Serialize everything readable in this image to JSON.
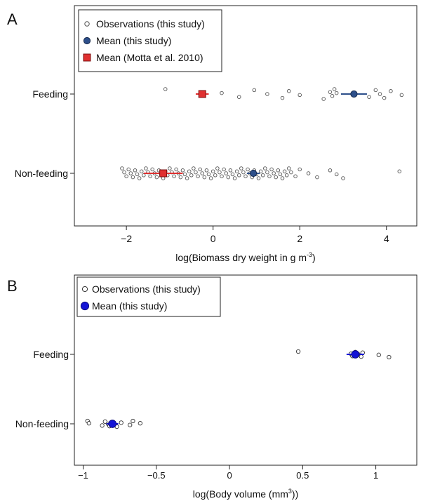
{
  "chart_data": [
    {
      "panel_label": "A",
      "type": "scatter",
      "title": "",
      "xlabel": "log(Biomass dry weight in g m",
      "xlabel_superscript": "-3",
      "xlabel_suffix": ")",
      "xlim": [
        -3.2,
        4.7
      ],
      "xticks": [
        -2,
        0,
        2,
        4
      ],
      "xtick_labels": [
        "−2",
        "0",
        "2",
        "4"
      ],
      "categories": [
        "Feeding",
        "Non-feeding"
      ],
      "legend": {
        "placement": "top-left",
        "entries": [
          "Observations (this study)",
          "Mean (this study)",
          "Mean (Motta et al. 2010)"
        ]
      },
      "colors": {
        "observation_edge": "#555555",
        "mean_this_study": "#2d4f8a",
        "mean_motta": "#e03030"
      },
      "series": [
        {
          "name": "Observations (this study)",
          "points": {
            "Feeding": [
              -1.1,
              0.2,
              0.6,
              0.95,
              1.25,
              1.6,
              1.75,
              2.0,
              2.55,
              2.7,
              2.75,
              2.8,
              2.85,
              3.6,
              3.75,
              3.85,
              3.95,
              4.1,
              4.35
            ],
            "Non-feeding": [
              -2.1,
              -2.05,
              -2.0,
              -1.95,
              -1.9,
              -1.85,
              -1.8,
              -1.75,
              -1.7,
              -1.65,
              -1.6,
              -1.55,
              -1.5,
              -1.45,
              -1.4,
              -1.35,
              -1.3,
              -1.25,
              -1.2,
              -1.15,
              -1.1,
              -1.05,
              -1.0,
              -0.95,
              -0.9,
              -0.85,
              -0.8,
              -0.75,
              -0.7,
              -0.65,
              -0.6,
              -0.55,
              -0.5,
              -0.45,
              -0.4,
              -0.35,
              -0.3,
              -0.25,
              -0.2,
              -0.15,
              -0.1,
              -0.05,
              0.0,
              0.05,
              0.1,
              0.15,
              0.2,
              0.25,
              0.3,
              0.35,
              0.4,
              0.45,
              0.5,
              0.55,
              0.6,
              0.65,
              0.7,
              0.75,
              0.8,
              0.85,
              0.9,
              0.95,
              1.0,
              1.05,
              1.1,
              1.15,
              1.2,
              1.25,
              1.3,
              1.35,
              1.4,
              1.45,
              1.5,
              1.55,
              1.6,
              1.65,
              1.7,
              1.75,
              1.8,
              1.9,
              2.0,
              2.2,
              2.4,
              2.7,
              2.85,
              3.0,
              4.3
            ]
          }
        },
        {
          "name": "Mean (this study)",
          "means": [
            {
              "category": "Feeding",
              "x": 3.25,
              "ci": [
                2.95,
                3.55
              ]
            },
            {
              "category": "Non-feeding",
              "x": 0.93,
              "ci": [
                0.78,
                1.08
              ]
            }
          ]
        },
        {
          "name": "Mean (Motta et al. 2010)",
          "means": [
            {
              "category": "Feeding",
              "x": -0.25,
              "ci": [
                -0.4,
                -0.1
              ]
            },
            {
              "category": "Non-feeding",
              "x": -1.15,
              "ci": [
                -1.6,
                -0.7
              ]
            }
          ]
        }
      ]
    },
    {
      "panel_label": "B",
      "type": "scatter",
      "title": "",
      "xlabel": "log(Body volume (mm",
      "xlabel_superscript": "3",
      "xlabel_suffix": "))",
      "xlim": [
        -1.06,
        1.28
      ],
      "xticks": [
        -1,
        -0.5,
        0,
        0.5,
        1
      ],
      "xtick_labels": [
        "−1",
        "−0.5",
        "0",
        "0.5",
        "1"
      ],
      "categories": [
        "Feeding",
        "Non-feeding"
      ],
      "legend": {
        "placement": "top-left",
        "entries": [
          "Observations (this study)",
          "Mean (this study)"
        ]
      },
      "colors": {
        "observation_edge": "#333333",
        "mean_this_study": "#1414d6"
      },
      "series": [
        {
          "name": "Observations (this study)",
          "points": {
            "Feeding": [
              0.47,
              0.83,
              0.84,
              0.86,
              0.88,
              0.9,
              0.91,
              1.02,
              1.09
            ],
            "Non-feeding": [
              -0.97,
              -0.96,
              -0.87,
              -0.85,
              -0.83,
              -0.82,
              -0.8,
              -0.79,
              -0.77,
              -0.74,
              -0.68,
              -0.66,
              -0.61
            ]
          }
        },
        {
          "name": "Mean (this study)",
          "means": [
            {
              "category": "Feeding",
              "x": 0.86,
              "ci": [
                0.8,
                0.92
              ]
            },
            {
              "category": "Non-feeding",
              "x": -0.8,
              "ci": [
                -0.84,
                -0.76
              ]
            }
          ]
        }
      ]
    }
  ]
}
